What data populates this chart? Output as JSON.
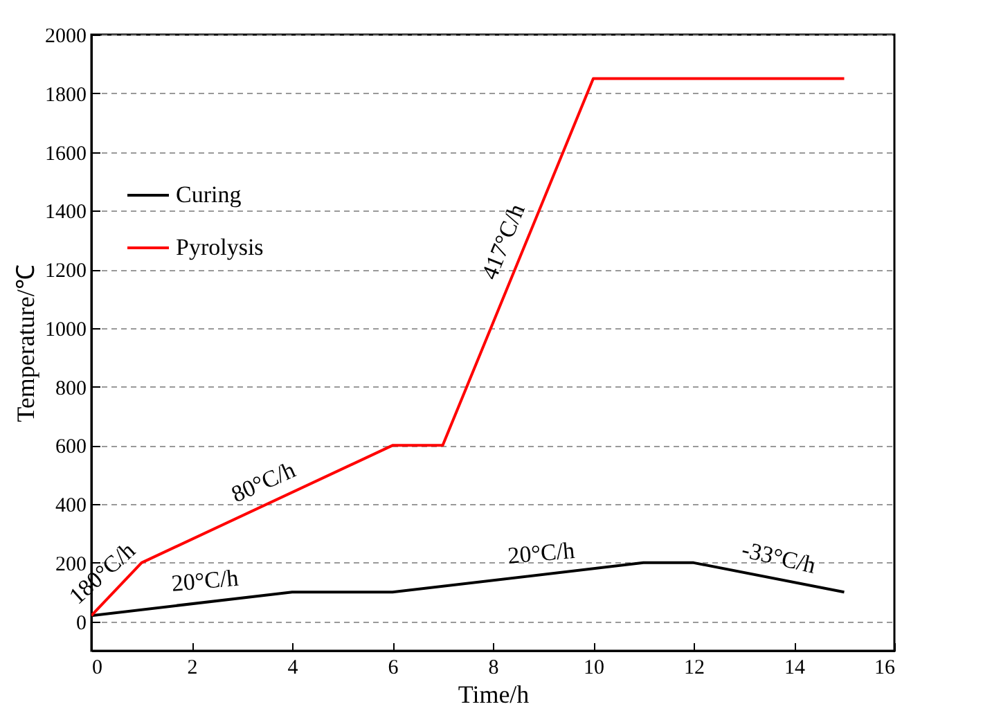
{
  "chart_data": {
    "type": "line",
    "xlabel": "Time/h",
    "ylabel": "Temperature/℃",
    "xlim": [
      0,
      16
    ],
    "xticks": [
      0,
      2,
      4,
      6,
      8,
      10,
      12,
      14,
      16
    ],
    "ylim": [
      -100,
      2000
    ],
    "yticks": [
      0,
      200,
      400,
      600,
      800,
      1000,
      1200,
      1400,
      1600,
      1800,
      2000
    ],
    "grid": "y",
    "legend": "top left",
    "line_style": "solid",
    "marker": "none",
    "series": [
      {
        "name": "Curing",
        "color": "#000000",
        "x": [
          0,
          4,
          6,
          11,
          12,
          15
        ],
        "values": [
          20,
          100,
          100,
          200,
          200,
          100
        ]
      },
      {
        "name": "Pyrolysis",
        "color": "#ff0000",
        "x": [
          0,
          1,
          6,
          7,
          10,
          15
        ],
        "values": [
          20,
          200,
          600,
          600,
          1850,
          1850
        ]
      }
    ],
    "annotations": [
      {
        "text": "180°C/h",
        "x": 0.5,
        "y": 110
      },
      {
        "text": "20°C/h",
        "x": 2.3,
        "y": 66
      },
      {
        "text": "80°C/h",
        "x": 3.6,
        "y": 408
      },
      {
        "text": "417°C/h",
        "x": 8.6,
        "y": 1267
      },
      {
        "text": "20°C/h",
        "x": 9,
        "y": 160
      },
      {
        "text": "-33°C/h",
        "x": 13.6,
        "y": 147
      }
    ]
  }
}
